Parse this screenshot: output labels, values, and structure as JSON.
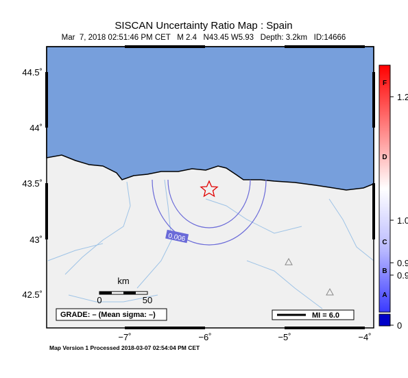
{
  "header": {
    "title": "SISCAN Uncertainty Ratio Map : Spain",
    "subtitle": "Mar  7, 2018 02:51:46 PM CET   M 2.4   N43.45 W5.93   Depth: 3.2km   ID:14666"
  },
  "axes": {
    "lat_labels": [
      "44.5˚",
      "44˚",
      "43.5˚",
      "43˚",
      "42.5˚"
    ],
    "lon_labels": [
      "−7˚",
      "−6˚",
      "−5˚",
      "−4˚"
    ]
  },
  "colorbar": {
    "grades": [
      "F",
      "D",
      "C",
      "B",
      "A"
    ],
    "ticks": [
      "1.2",
      "1.0",
      "0.9",
      "0.9",
      "0"
    ]
  },
  "legend": {
    "grade": "GRADE: – (Mean sigma: –)",
    "mi": "MI = 6.0"
  },
  "scale": {
    "unit": "km",
    "labels": [
      "0",
      "50"
    ]
  },
  "contour_label": "0.006",
  "footer": "Map Version 1 Processed 2018-03-07 02:54:04 PM CET"
}
